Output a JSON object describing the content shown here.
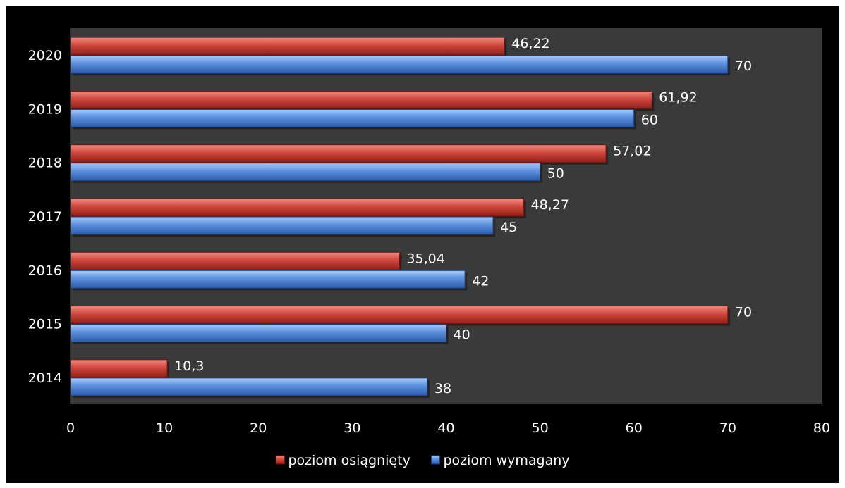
{
  "chart_data": {
    "type": "bar",
    "orientation": "horizontal",
    "categories": [
      "2020",
      "2019",
      "2018",
      "2017",
      "2016",
      "2015",
      "2014"
    ],
    "series": [
      {
        "name": "poziom osiągnięty",
        "color": "#c0392b",
        "values": [
          46.22,
          61.92,
          57.02,
          48.27,
          35.04,
          70,
          10.3
        ],
        "labels": [
          "46,22",
          "61,92",
          "57,02",
          "48,27",
          "35,04",
          "70",
          "10,3"
        ]
      },
      {
        "name": "poziom wymagany",
        "color": "#4a7fd4",
        "values": [
          70,
          60,
          50,
          45,
          42,
          40,
          38
        ],
        "labels": [
          "70",
          "60",
          "50",
          "45",
          "42",
          "40",
          "38"
        ]
      }
    ],
    "xlim": [
      0,
      80
    ],
    "xticks": [
      "0",
      "10",
      "20",
      "30",
      "40",
      "50",
      "60",
      "70",
      "80"
    ],
    "grid": false,
    "legend": "bottom",
    "plot_background": "#3a3a3a",
    "frame_background": "#000000",
    "title": "",
    "xlabel": "",
    "ylabel": ""
  }
}
